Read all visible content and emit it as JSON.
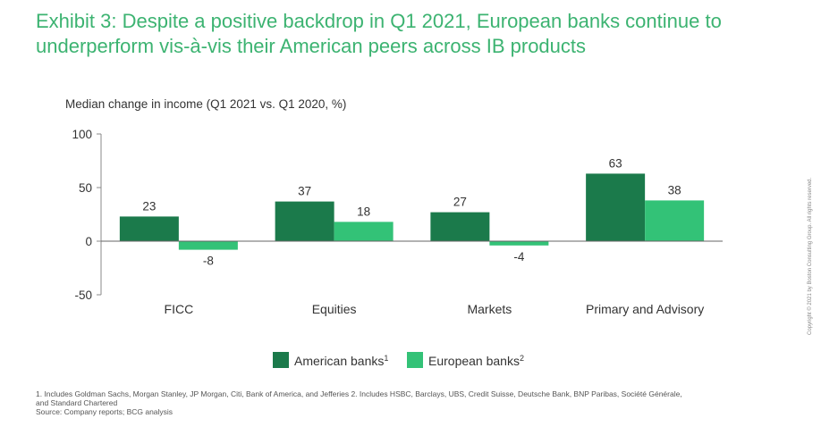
{
  "header": {
    "title_line1": "Exhibit 3: Despite a positive backdrop in Q1 2021, European banks continue to",
    "title_line2": "underperform vis-à-vis their American peers across IB products"
  },
  "chart_data": {
    "type": "bar",
    "ylabel": "Median change in income (Q1 2021 vs. Q1 2020, %)",
    "categories": [
      "FICC",
      "Equities",
      "Markets",
      "Primary and Advisory"
    ],
    "series": [
      {
        "name": "American banks",
        "sup": "1",
        "color": "#1b7a4b",
        "values": [
          23,
          37,
          27,
          63
        ],
        "labels": [
          "23",
          "37",
          "27",
          "63"
        ]
      },
      {
        "name": "European banks",
        "sup": "2",
        "color": "#33c277",
        "values": [
          -8,
          18,
          -4,
          38
        ],
        "labels": [
          "-8",
          "18",
          "-4",
          "38"
        ]
      }
    ],
    "ylim": [
      -50,
      100
    ],
    "yticks": [
      -50,
      0,
      50,
      100
    ],
    "ytick_labels": [
      "-50",
      "0",
      "50",
      "100"
    ],
    "grid": false,
    "legend_position": "bottom-center"
  },
  "notes": {
    "line1": "1. Includes Goldman Sachs, Morgan Stanley, JP Morgan, Citi, Bank of America, and Jefferies  2. Includes HSBC, Barclays, UBS, Credit Suisse, Deutsche Bank, BNP Paribas, Société Générale,",
    "line2": "and Standard Chartered",
    "line3": "Source: Company reports; BCG analysis"
  },
  "copyright": "Copyright © 2021 by Boston Consulting Group. All rights reserved."
}
